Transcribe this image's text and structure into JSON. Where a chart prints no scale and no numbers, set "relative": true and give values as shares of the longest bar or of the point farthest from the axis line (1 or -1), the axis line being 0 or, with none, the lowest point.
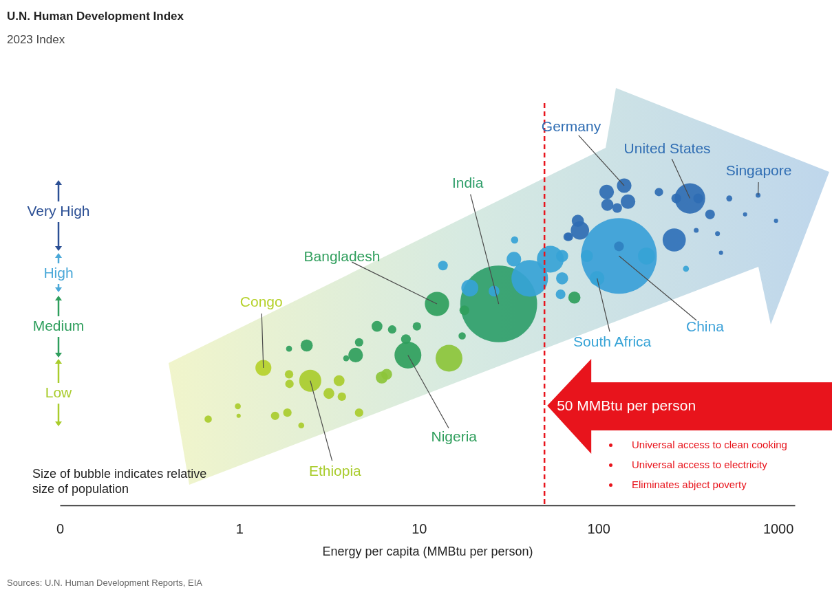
{
  "chart_data": {
    "type": "bubble",
    "title": "U.N. Human Development Index",
    "subtitle": "2023 Index",
    "xlabel": "Energy per capita (MMBtu per person)",
    "relative": true,
    "log": "x",
    "xlim": [
      0.1,
      1240
    ],
    "xticks": [
      {
        "value": 0.1,
        "label": "0"
      },
      1,
      10,
      100,
      1000
    ],
    "x": [
      0.67,
      0.98,
      0.99,
      1.36,
      1.58,
      1.85,
      1.89,
      1.9,
      2.48,
      2.21,
      3.15,
      3.59,
      3.72,
      4.64,
      1.89,
      2.37,
      4.44,
      4.64,
      3.93,
      6.21,
      6.61,
      5.84,
      7.09,
      9.74,
      8.46,
      8.68,
      14.7,
      12.6,
      27.8,
      13.6,
      19.2,
      26.2,
      34.1,
      33.8,
      41.4,
      53.9,
      62.7,
      62.7,
      61.5,
      73.4,
      76.7,
      68.4,
      17.9,
      17.4,
      130,
      98.2,
      111,
      139,
      112,
      146,
      127,
      323,
      271,
      359,
      418,
      217,
      264,
      774,
      535,
      655,
      974,
      350,
      460,
      481,
      307,
      78.8,
      67.3,
      185,
      86.1,
      130
    ],
    "values": [
      0.27,
      0.31,
      0.28,
      0.43,
      0.28,
      0.29,
      0.41,
      0.38,
      0.39,
      0.25,
      0.35,
      0.39,
      0.34,
      0.29,
      0.49,
      0.5,
      0.47,
      0.51,
      0.46,
      0.4,
      0.41,
      0.56,
      0.55,
      0.56,
      0.52,
      0.47,
      0.46,
      0.63,
      0.63,
      0.75,
      0.68,
      0.67,
      0.83,
      0.77,
      0.71,
      0.77,
      0.78,
      0.71,
      0.66,
      0.65,
      0.89,
      0.84,
      0.61,
      0.53,
      0.78,
      0.71,
      0.98,
      1,
      0.94,
      0.95,
      0.93,
      0.96,
      0.96,
      0.96,
      0.91,
      0.98,
      0.83,
      0.97,
      0.96,
      0.91,
      0.89,
      0.86,
      0.85,
      0.79,
      0.74,
      0.86,
      0.84,
      0.78,
      0.78,
      0.81
    ],
    "sizes": [
      0.009,
      0.006,
      0.003,
      0.043,
      0.012,
      0.012,
      0.012,
      0.012,
      0.082,
      0.006,
      0.02,
      0.02,
      0.012,
      0.012,
      0.006,
      0.025,
      0.036,
      0.012,
      0.006,
      0.025,
      0.02,
      0.02,
      0.012,
      0.012,
      0.016,
      0.122,
      0.122,
      0.1,
      1,
      0.016,
      0.049,
      0.02,
      0.009,
      0.036,
      0.227,
      0.122,
      0.025,
      0.025,
      0.016,
      0.025,
      0.025,
      0.012,
      0.016,
      0.009,
      0.969,
      0.036,
      0.036,
      0.036,
      0.025,
      0.036,
      0.016,
      0.157,
      0.016,
      0.016,
      0.016,
      0.012,
      0.091,
      0.004,
      0.006,
      0.003,
      0.003,
      0.004,
      0.004,
      0.003,
      0.006,
      0.057,
      0.012,
      0.049,
      0.025,
      0.016
    ],
    "colors": [
      "#a9cc2c",
      "#a9cc2c",
      "#a9cc2c",
      "#b5d12a",
      "#a9cc2c",
      "#a9cc2c",
      "#a9cc2c",
      "#a9cc2c",
      "#a9cc2c",
      "#a9cc2c",
      "#a9cc2c",
      "#a9cc2c",
      "#a9cc2c",
      "#a9cc2c",
      "#2f9e5c",
      "#2f9e5c",
      "#2f9e5c",
      "#2f9e5c",
      "#2f9e5c",
      "#8cc43a",
      "#8cc43a",
      "#2f9e5c",
      "#2f9e5c",
      "#2f9e5c",
      "#2f9e5c",
      "#2f9e5c",
      "#8cc43a",
      "#2f9e5c",
      "#2f9e6a",
      "#36a3d6",
      "#36a3d6",
      "#36a3d6",
      "#36a3d6",
      "#36a3d6",
      "#36a3d6",
      "#36a3d6",
      "#36a3d6",
      "#36a3d6",
      "#36a3d6",
      "#2f9e5c",
      "#2f6db3",
      "#2f6db3",
      "#2f9e5c",
      "#2f9e5c",
      "#39a0d8",
      "#36a3d6",
      "#2f6db3",
      "#2f6db3",
      "#2f6db3",
      "#2f6db3",
      "#2f6db3",
      "#2f6db3",
      "#2f6db3",
      "#2f6db3",
      "#2f6db3",
      "#2f6db3",
      "#2f70b8",
      "#2f6db3",
      "#2f6db3",
      "#2f6db3",
      "#2f6db3",
      "#2f6db3",
      "#2f6db3",
      "#2f6db3",
      "#36a3d6",
      "#2f6db3",
      "#2f6db3",
      "#36a3d6",
      "#36a3d6",
      "#2f80c0"
    ],
    "ref_lines": [
      {
        "axis": "x",
        "value": 50,
        "label": "50 MMBtu per person",
        "color": "#e8141c",
        "line_style": "dashed"
      }
    ],
    "annotations": [
      {
        "text": "Congo",
        "x": 1.36,
        "y": 0.43
      },
      {
        "text": "Ethiopia",
        "x": 2.48,
        "y": 0.39
      },
      {
        "text": "Nigeria",
        "x": 8.68,
        "y": 0.47
      },
      {
        "text": "Bangladesh",
        "x": 12.6,
        "y": 0.63
      },
      {
        "text": "India",
        "x": 27.8,
        "y": 0.63
      },
      {
        "text": "South Africa",
        "x": 98.2,
        "y": 0.71
      },
      {
        "text": "China",
        "x": 130,
        "y": 0.78
      },
      {
        "text": "Germany",
        "x": 139,
        "y": 1
      },
      {
        "text": "United States",
        "x": 323,
        "y": 0.96
      },
      {
        "text": "Singapore",
        "x": 774,
        "y": 0.97
      },
      "Size of bubble indicates relative size of population",
      "Very High",
      "High",
      "Medium",
      "Low",
      "Universal access to clean cooking",
      "Universal access to electricity",
      "Eliminates abject poverty",
      "Sources: U.N. Human Development Reports, EIA"
    ]
  }
}
